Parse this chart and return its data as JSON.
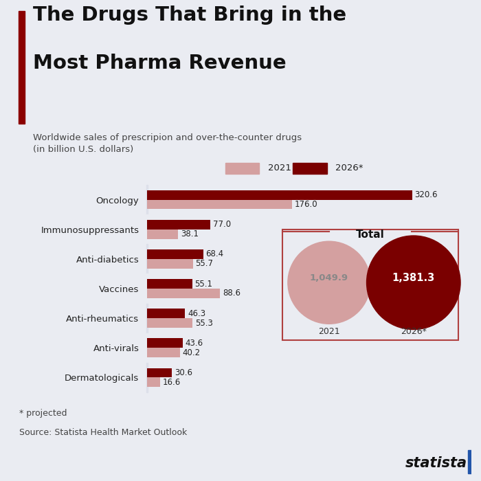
{
  "title_line1": "The Drugs That Bring in the",
  "title_line2": "Most Pharma Revenue",
  "subtitle": "Worldwide sales of prescripion and over-the-counter drugs\n(in billion U.S. dollars)",
  "categories": [
    "Oncology",
    "Immunosuppressants",
    "Anti-diabetics",
    "Vaccines",
    "Anti-rheumatics",
    "Anti-virals",
    "Dermatologicals"
  ],
  "values_2021": [
    176.0,
    38.1,
    55.7,
    88.6,
    55.3,
    40.2,
    16.6
  ],
  "values_2026": [
    320.6,
    77.0,
    68.4,
    55.1,
    46.3,
    43.6,
    30.6
  ],
  "color_2021": "#d4a0a0",
  "color_2026": "#7a0000",
  "total_2021": "1,049.9",
  "total_2026": "1,381.3",
  "bg_color": "#eaecf2",
  "row_color_dark": "#dde0ea",
  "row_color_light": "#eaecf2",
  "title_bar_color": "#8b0000",
  "footnote_line1": "* projected",
  "footnote_line2": "Source: Statista Health Market Outlook",
  "legend_2021": "2021",
  "legend_2026": "2026*",
  "total_label": "Total",
  "max_val": 340,
  "bar_height": 0.32
}
